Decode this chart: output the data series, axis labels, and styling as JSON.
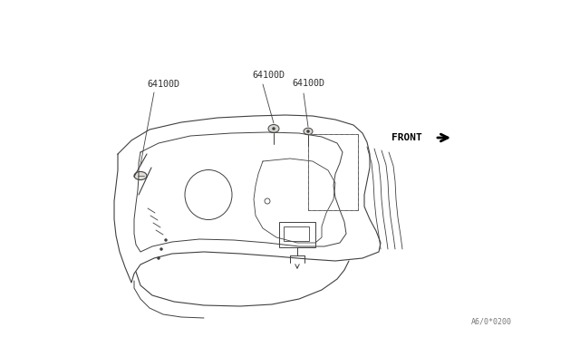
{
  "bg_color": "#ffffff",
  "line_color": "#404040",
  "text_color": "#303030",
  "title_text": "A6/0*0200",
  "front_label": "FRONT",
  "fig_width": 6.4,
  "fig_height": 3.72,
  "dpi": 100,
  "label1": "64100D",
  "label2": "64100D",
  "label3": "64100D"
}
